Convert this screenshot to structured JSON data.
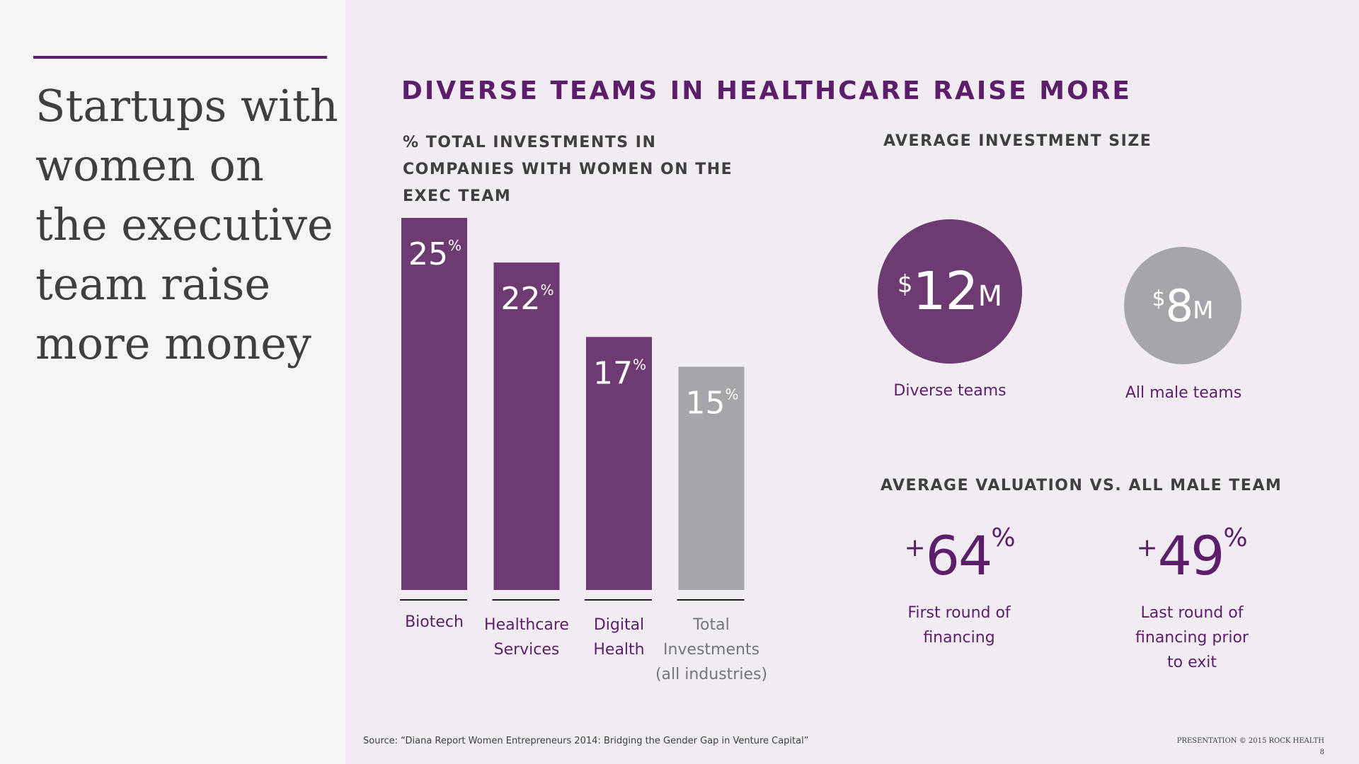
{
  "headline": "Startups with women on the executive team raise more money",
  "main_title": "DIVERSE TEAMS IN HEALTHCARE RAISE MORE",
  "colors": {
    "purple": "#6e3a72",
    "gray": "#a6a6aa",
    "dark_purple": "#5c1e6b",
    "text_dark": "#3f3f41"
  },
  "chart_data": {
    "type": "bar",
    "title": "% TOTAL INVESTMENTS IN COMPANIES WITH WOMEN ON THE EXEC TEAM",
    "categories": [
      "Biotech",
      "Healthcare Services",
      "Digital Health",
      "Total Investments (all industries)"
    ],
    "category_lines": [
      [
        "Biotech"
      ],
      [
        "Healthcare",
        "Services"
      ],
      [
        "Digital",
        "Health"
      ],
      [
        "Total",
        "Investments",
        "(all industries)"
      ]
    ],
    "values": [
      25,
      22,
      17,
      15
    ],
    "value_unit": "%",
    "bar_colors": [
      "#6e3a72",
      "#6e3a72",
      "#6e3a72",
      "#a6a6aa"
    ],
    "ylim": [
      0,
      25
    ],
    "grid": false,
    "legend": "none"
  },
  "avg_investment": {
    "label": "AVERAGE INVESTMENT SIZE",
    "diverse": {
      "currency": "$",
      "value": "12",
      "unit": "M",
      "caption": "Diverse teams"
    },
    "male": {
      "currency": "$",
      "value": "8",
      "unit": "M",
      "caption": "All male teams"
    }
  },
  "avg_valuation": {
    "label": "AVERAGE VALUATION VS. ALL MALE TEAM",
    "first": {
      "plus": "+",
      "value": "64",
      "pct": "%",
      "caption_lines": [
        "First round of",
        "financing"
      ]
    },
    "last": {
      "plus": "+",
      "value": "49",
      "pct": "%",
      "caption_lines": [
        "Last round of",
        "financing prior",
        "to exit"
      ]
    }
  },
  "source": "Source: “Diana Report Women Entrepreneurs 2014: Bridging the Gender Gap in Venture Capital”",
  "footer": {
    "text": "PRESENTATION © 2015 ROCK HEALTH",
    "page": "8"
  }
}
